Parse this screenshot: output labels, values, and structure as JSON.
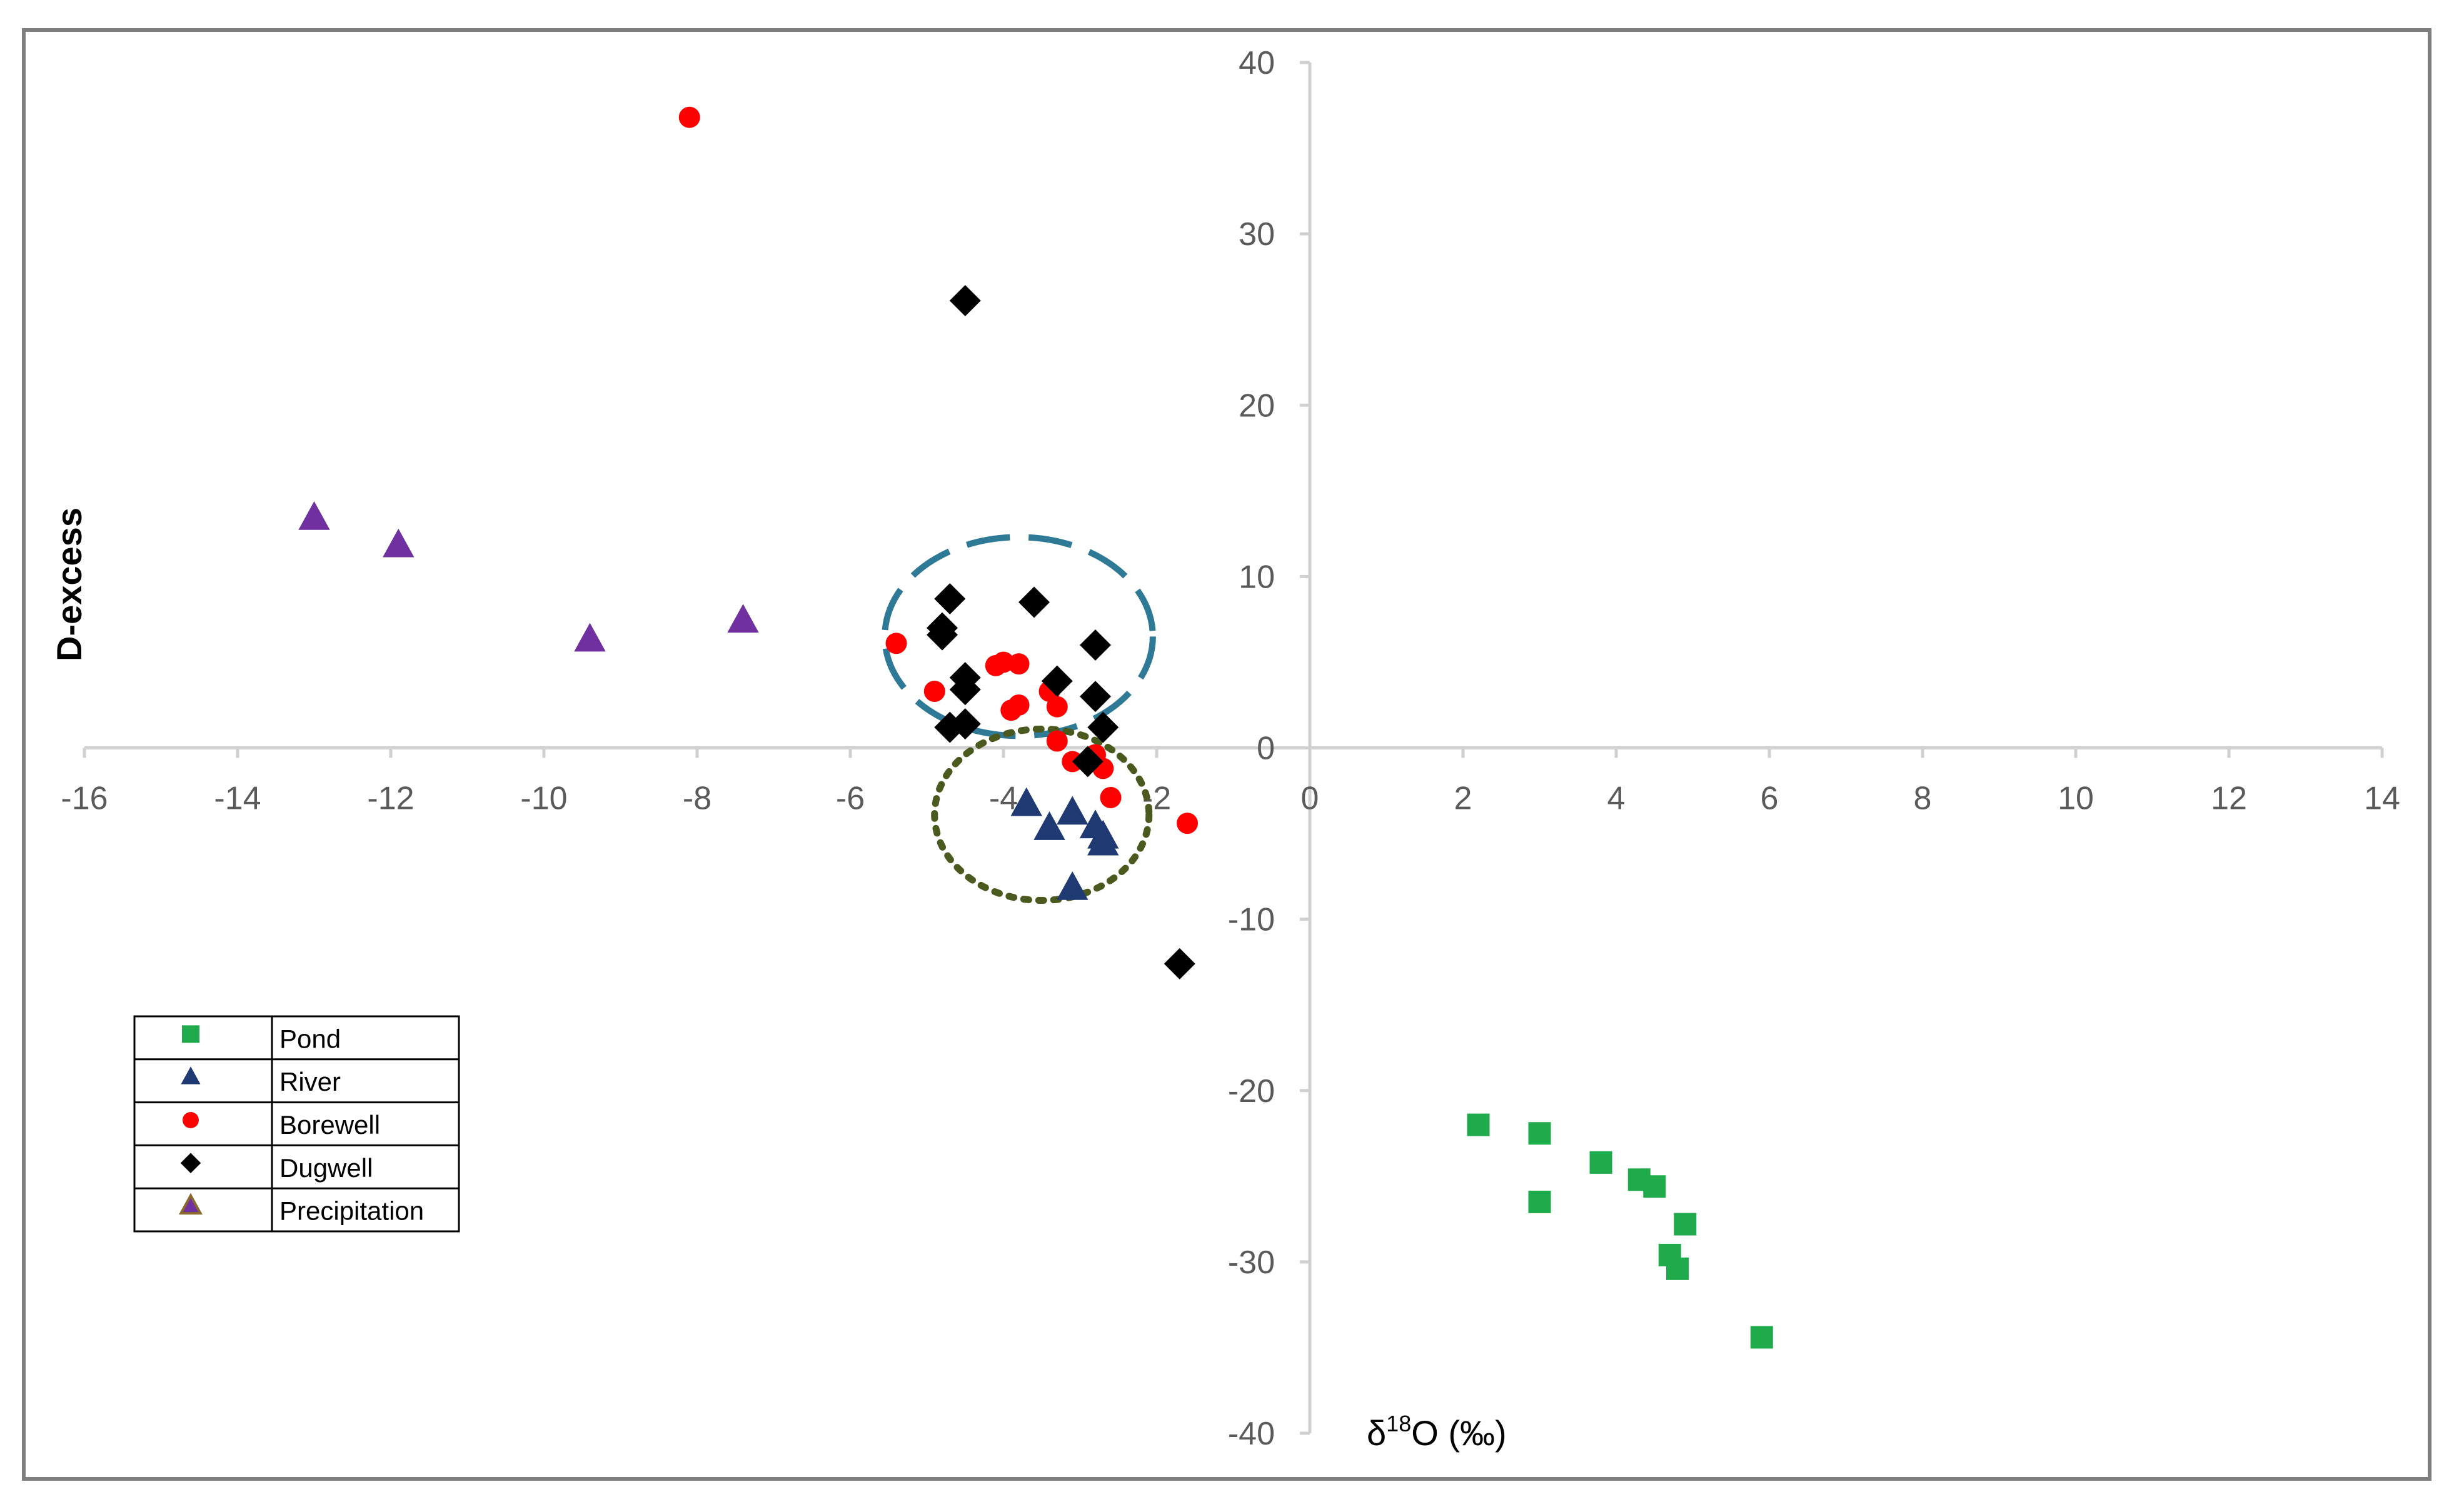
{
  "chart_data": {
    "type": "scatter",
    "xlabel": "δ18O (‰)",
    "ylabel": "D-excess",
    "xlim": [
      -16,
      14
    ],
    "ylim": [
      -40,
      40
    ],
    "x_ticks": [
      -16,
      -14,
      -12,
      -10,
      -8,
      -6,
      -4,
      -2,
      0,
      2,
      4,
      6,
      8,
      10,
      12,
      14
    ],
    "y_ticks": [
      40,
      30,
      20,
      10,
      0,
      -10,
      -20,
      -30,
      -40
    ],
    "grid": false,
    "legend_position": "bottom-left",
    "series": [
      {
        "name": "Pond",
        "marker": "square",
        "color": "#1faa4b",
        "points": [
          [
            2.2,
            -22
          ],
          [
            3,
            -22.5
          ],
          [
            3,
            -26.5
          ],
          [
            3.8,
            -24.2
          ],
          [
            4.3,
            -25.2
          ],
          [
            4.5,
            -25.6
          ],
          [
            4.9,
            -27.8
          ],
          [
            4.7,
            -29.6
          ],
          [
            4.8,
            -30.4
          ],
          [
            5.9,
            -34.4
          ]
        ]
      },
      {
        "name": "River",
        "marker": "triangle",
        "color": "#1f3a73",
        "points": [
          [
            -3.7,
            -3.3
          ],
          [
            -3.4,
            -4.7
          ],
          [
            -3.1,
            -3.8
          ],
          [
            -2.8,
            -4.6
          ],
          [
            -2.7,
            -5.6
          ],
          [
            -2.7,
            -5.2
          ],
          [
            -3.1,
            -8.2
          ]
        ]
      },
      {
        "name": "Borewell",
        "marker": "circle",
        "color": "#ff0000",
        "points": [
          [
            -8.1,
            36.8
          ],
          [
            -5.4,
            6.1
          ],
          [
            -4.9,
            3.3
          ],
          [
            -4.1,
            4.8
          ],
          [
            -4,
            5
          ],
          [
            -3.8,
            4.9
          ],
          [
            -3.9,
            2.2
          ],
          [
            -3.8,
            2.5
          ],
          [
            -3.4,
            3.3
          ],
          [
            -3.3,
            2.4
          ],
          [
            -3.3,
            0.4
          ],
          [
            -3.1,
            -0.8
          ],
          [
            -2.8,
            -0.4
          ],
          [
            -2.7,
            -1.2
          ],
          [
            -2.6,
            -2.9
          ],
          [
            -1.6,
            -4.4
          ]
        ]
      },
      {
        "name": "Dugwell",
        "marker": "diamond",
        "color": "#000000",
        "points": [
          [
            -4.5,
            26.1
          ],
          [
            -4.7,
            8.7
          ],
          [
            -3.6,
            8.5
          ],
          [
            -4.8,
            6.6
          ],
          [
            -4.8,
            7
          ],
          [
            -2.8,
            6
          ],
          [
            -4.5,
            4.1
          ],
          [
            -4.5,
            3.4
          ],
          [
            -3.3,
            3.9
          ],
          [
            -2.8,
            3
          ],
          [
            -4.7,
            1.2
          ],
          [
            -4.5,
            1.4
          ],
          [
            -2.7,
            1.2
          ],
          [
            -2.9,
            -0.8
          ],
          [
            -1.7,
            -12.6
          ]
        ]
      },
      {
        "name": "Precipitation",
        "marker": "triangle",
        "color": "#7030a0",
        "points": [
          [
            -13,
            13.4
          ],
          [
            -11.9,
            11.8
          ],
          [
            -9.4,
            6.3
          ],
          [
            -7.4,
            7.4
          ]
        ]
      }
    ],
    "annotations": [
      {
        "shape": "ellipse",
        "style": "dashed",
        "color": "#2e7a96",
        "center": [
          -3.8,
          6.5
        ],
        "radii": [
          1.75,
          5.8
        ]
      },
      {
        "shape": "circle",
        "style": "dotted",
        "color": "#4a5a1e",
        "center": [
          -3.5,
          -3.9
        ],
        "radii": [
          1.4,
          5
        ]
      }
    ]
  }
}
